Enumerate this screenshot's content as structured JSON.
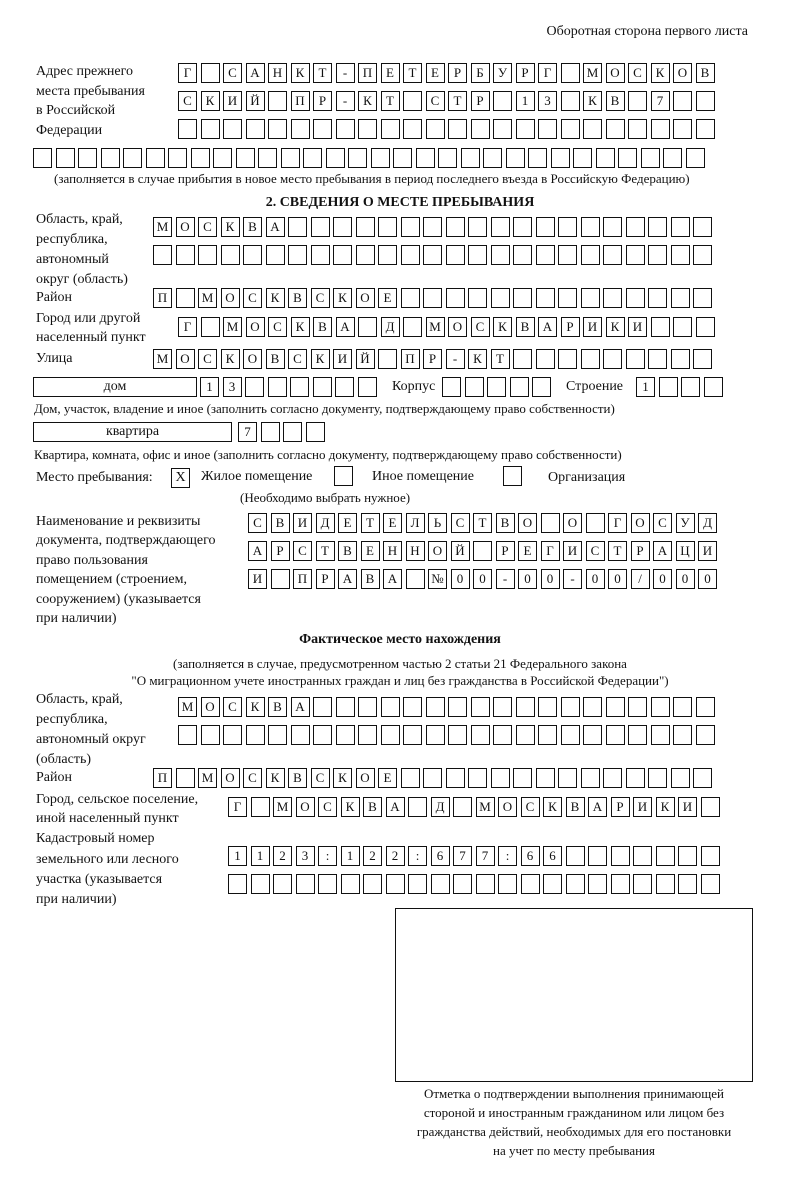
{
  "header": {
    "side_label": "Оборотная сторона первого листа"
  },
  "prev_address": {
    "label": [
      "Адрес прежнего",
      "места пребывания",
      "в Российской",
      "Федерации"
    ],
    "rows": [
      [
        "Г",
        "",
        "С",
        "А",
        "Н",
        "К",
        "Т",
        "-",
        "П",
        "Е",
        "Т",
        "Е",
        "Р",
        "Б",
        "У",
        "Р",
        "Г",
        "",
        "М",
        "О",
        "С",
        "К",
        "О",
        "В"
      ],
      [
        "С",
        "К",
        "И",
        "Й",
        "",
        "П",
        "Р",
        "-",
        "К",
        "Т",
        "",
        "С",
        "Т",
        "Р",
        "",
        "1",
        "3",
        "",
        "К",
        "В",
        "",
        "7",
        "",
        ""
      ],
      [
        "",
        "",
        "",
        "",
        "",
        "",
        "",
        "",
        "",
        "",
        "",
        "",
        "",
        "",
        "",
        "",
        "",
        "",
        "",
        "",
        "",
        "",
        "",
        ""
      ],
      [
        "",
        "",
        "",
        "",
        "",
        "",
        "",
        "",
        "",
        "",
        "",
        "",
        "",
        "",
        "",
        "",
        "",
        "",
        "",
        "",
        "",
        "",
        "",
        "",
        "",
        "",
        "",
        "",
        "",
        ""
      ]
    ],
    "note": "(заполняется в случае прибытия в новое место пребывания в период последнего въезда в Российскую Федерацию)"
  },
  "section2": {
    "title": "2. СВЕДЕНИЯ О МЕСТЕ ПРЕБЫВАНИЯ",
    "region_label": [
      "Область, край,",
      "республика,",
      "автономный",
      "округ (область)"
    ],
    "region_rows": [
      [
        "М",
        "О",
        "С",
        "К",
        "В",
        "А",
        "",
        "",
        "",
        "",
        "",
        "",
        "",
        "",
        "",
        "",
        "",
        "",
        "",
        "",
        "",
        "",
        "",
        "",
        ""
      ],
      [
        "",
        "",
        "",
        "",
        "",
        "",
        "",
        "",
        "",
        "",
        "",
        "",
        "",
        "",
        "",
        "",
        "",
        "",
        "",
        "",
        "",
        "",
        "",
        "",
        ""
      ]
    ],
    "district_label": "Район",
    "district_row": [
      "П",
      "",
      "М",
      "О",
      "С",
      "К",
      "В",
      "С",
      "К",
      "О",
      "Е",
      "",
      "",
      "",
      "",
      "",
      "",
      "",
      "",
      "",
      "",
      "",
      "",
      "",
      ""
    ],
    "city_label": [
      "Город или другой",
      "населенный пункт"
    ],
    "city_row": [
      "Г",
      "",
      "М",
      "О",
      "С",
      "К",
      "В",
      "А",
      "",
      "Д",
      "",
      "М",
      "О",
      "С",
      "К",
      "В",
      "А",
      "Р",
      "И",
      "К",
      "И",
      "",
      "",
      ""
    ],
    "street_label": "Улица",
    "street_row": [
      "М",
      "О",
      "С",
      "К",
      "О",
      "В",
      "С",
      "К",
      "И",
      "Й",
      "",
      "П",
      "Р",
      "-",
      "К",
      "Т",
      "",
      "",
      "",
      "",
      "",
      "",
      "",
      "",
      ""
    ],
    "house_type": "дом",
    "house_cells": [
      "1",
      "3",
      "",
      "",
      "",
      "",
      "",
      ""
    ],
    "korpus_label": "Корпус",
    "korpus_cells": [
      "",
      "",
      "",
      "",
      ""
    ],
    "building_label": "Строение",
    "building_cells": [
      "1",
      "",
      "",
      ""
    ],
    "house_note": "Дом, участок, владение и иное (заполнить согласно документу, подтверждающему право собственности)",
    "flat_type": "квартира",
    "flat_cells": [
      "7",
      "",
      "",
      ""
    ],
    "flat_note": "Квартира, комната, офис и иное (заполнить согласно документу, подтверждающему право собственности)",
    "stay_place_label": "Место пребывания:",
    "options": [
      {
        "label": "Жилое помещение",
        "mark": "X",
        "checked": true
      },
      {
        "label": "Иное помещение",
        "mark": "",
        "checked": false
      },
      {
        "label": "Организация",
        "mark": "",
        "checked": false
      }
    ],
    "choose_note": "(Необходимо выбрать нужное)",
    "doc_label": [
      "Наименование и реквизиты",
      "документа, подтверждающего",
      "право пользования",
      "помещением (строением,",
      "сооружением) (указывается",
      "при наличии)"
    ],
    "doc_rows": [
      [
        "С",
        "В",
        "И",
        "Д",
        "Е",
        "Т",
        "Е",
        "Л",
        "Ь",
        "С",
        "Т",
        "В",
        "О",
        "",
        "О",
        "",
        "Г",
        "О",
        "С",
        "У",
        "Д"
      ],
      [
        "А",
        "Р",
        "С",
        "Т",
        "В",
        "Е",
        "Н",
        "Н",
        "О",
        "Й",
        "",
        "Р",
        "Е",
        "Г",
        "И",
        "С",
        "Т",
        "Р",
        "А",
        "Ц",
        "И"
      ],
      [
        "И",
        "",
        "П",
        "Р",
        "А",
        "В",
        "А",
        "",
        "№",
        "0",
        "0",
        "-",
        "0",
        "0",
        "-",
        "0",
        "0",
        "/",
        "0",
        "0",
        "0"
      ]
    ]
  },
  "actual": {
    "title": "Фактическое место нахождения",
    "note": [
      "(заполняется в случае, предусмотренном частью 2 статьи 21 Федерального закона",
      "\"О миграционном учете иностранных граждан и лиц без гражданства в Российской Федерации\")"
    ],
    "region_label": [
      "Область, край,",
      "республика,",
      "автономный округ",
      "(область)"
    ],
    "region_rows": [
      [
        "М",
        "О",
        "С",
        "К",
        "В",
        "А",
        "",
        "",
        "",
        "",
        "",
        "",
        "",
        "",
        "",
        "",
        "",
        "",
        "",
        "",
        "",
        "",
        "",
        ""
      ],
      [
        "",
        "",
        "",
        "",
        "",
        "",
        "",
        "",
        "",
        "",
        "",
        "",
        "",
        "",
        "",
        "",
        "",
        "",
        "",
        "",
        "",
        "",
        "",
        ""
      ]
    ],
    "district_label": "Район",
    "district_row": [
      "П",
      "",
      "М",
      "О",
      "С",
      "К",
      "В",
      "С",
      "К",
      "О",
      "Е",
      "",
      "",
      "",
      "",
      "",
      "",
      "",
      "",
      "",
      "",
      "",
      "",
      "",
      ""
    ],
    "city_label": [
      "Город, сельское поселение,",
      "иной населенный пункт"
    ],
    "city_row": [
      "Г",
      "",
      "М",
      "О",
      "С",
      "К",
      "В",
      "А",
      "",
      "Д",
      "",
      "М",
      "О",
      "С",
      "К",
      "В",
      "А",
      "Р",
      "И",
      "К",
      "И",
      ""
    ],
    "cadastral_label": [
      "Кадастровый номер",
      "земельного или лесного",
      "участка (указывается",
      "при наличии)"
    ],
    "cadastral_rows": [
      [
        "1",
        "1",
        "2",
        "3",
        ":",
        "1",
        "2",
        "2",
        ":",
        "6",
        "7",
        "7",
        ":",
        "6",
        "6",
        "",
        "",
        "",
        "",
        "",
        "",
        ""
      ],
      [
        "",
        "",
        "",
        "",
        "",
        "",
        "",
        "",
        "",
        "",
        "",
        "",
        "",
        "",
        "",
        "",
        "",
        "",
        "",
        "",
        "",
        ""
      ]
    ],
    "stamp_caption": [
      "Отметка о подтверждении выполнения принимающей",
      "стороной и иностранным гражданином или лицом без",
      "гражданства действий, необходимых для его постановки",
      "на учет по месту пребывания"
    ]
  }
}
